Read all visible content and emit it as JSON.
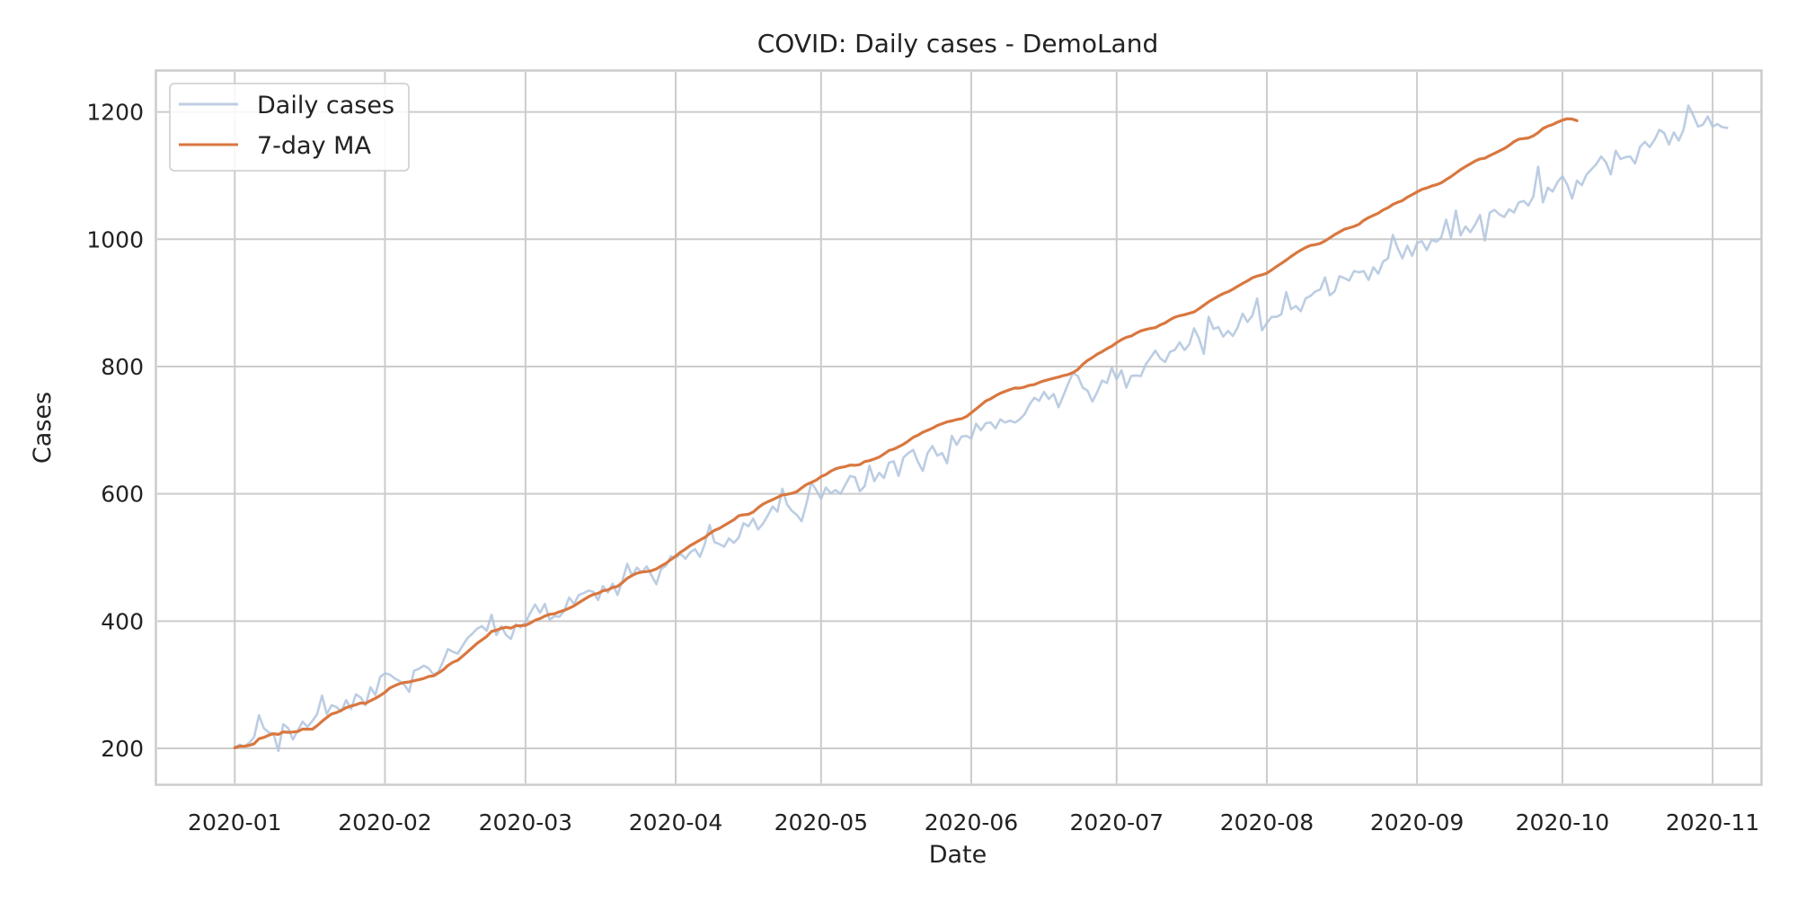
{
  "chart_data": {
    "type": "line",
    "title": "COVID: Daily cases - DemoLand",
    "xlabel": "Date",
    "ylabel": "Cases",
    "x_start": "2020-01-01",
    "x_end": "2020-10-26",
    "xlim": [
      "2019-12-16",
      "2020-11-11"
    ],
    "ylim": [
      145,
      1263
    ],
    "x_ticks": [
      {
        "date": "2020-01-01",
        "label": "2020-01"
      },
      {
        "date": "2020-02-01",
        "label": "2020-02"
      },
      {
        "date": "2020-03-01",
        "label": "2020-03"
      },
      {
        "date": "2020-04-01",
        "label": "2020-04"
      },
      {
        "date": "2020-05-01",
        "label": "2020-05"
      },
      {
        "date": "2020-06-01",
        "label": "2020-06"
      },
      {
        "date": "2020-07-01",
        "label": "2020-07"
      },
      {
        "date": "2020-08-01",
        "label": "2020-08"
      },
      {
        "date": "2020-09-01",
        "label": "2020-09"
      },
      {
        "date": "2020-10-01",
        "label": "2020-10"
      },
      {
        "date": "2020-11-01",
        "label": "2020-11"
      }
    ],
    "y_ticks": [
      200,
      400,
      600,
      800,
      1000,
      1200
    ],
    "grid": true,
    "legend_position": "top-left",
    "series": [
      {
        "name": "Daily cases",
        "color": "#b0c4de",
        "values": [
          201,
          206,
          203,
          209,
          218,
          252,
          232,
          225,
          223,
          196,
          238,
          232,
          214,
          228,
          242,
          234,
          243,
          254,
          283,
          254,
          268,
          265,
          258,
          276,
          262,
          285,
          280,
          268,
          296,
          284,
          312,
          318,
          316,
          310,
          306,
          300,
          289,
          322,
          325,
          330,
          326,
          316,
          320,
          337,
          356,
          352,
          349,
          361,
          373,
          380,
          388,
          392,
          385,
          410,
          378,
          392,
          378,
          372,
          395,
          390,
          398,
          413,
          426,
          413,
          427,
          402,
          408,
          407,
          416,
          437,
          427,
          441,
          444,
          448,
          446,
          433,
          455,
          445,
          459,
          441,
          463,
          490,
          471,
          484,
          476,
          486,
          472,
          458,
          482,
          487,
          502,
          499,
          506,
          498,
          508,
          513,
          501,
          521,
          551,
          524,
          521,
          517,
          530,
          523,
          531,
          554,
          549,
          561,
          544,
          553,
          566,
          580,
          572,
          608,
          583,
          573,
          567,
          557,
          585,
          618,
          606,
          592,
          610,
          601,
          606,
          600,
          614,
          628,
          626,
          604,
          612,
          644,
          620,
          633,
          625,
          649,
          651,
          628,
          657,
          664,
          669,
          650,
          636,
          664,
          675,
          660,
          664,
          648,
          691,
          677,
          690,
          691,
          687,
          710,
          700,
          711,
          712,
          703,
          717,
          712,
          715,
          712,
          717,
          725,
          740,
          751,
          746,
          760,
          749,
          757,
          736,
          754,
          773,
          790,
          785,
          767,
          762,
          745,
          760,
          778,
          774,
          798,
          780,
          794,
          767,
          785,
          786,
          785,
          803,
          814,
          825,
          813,
          807,
          823,
          826,
          838,
          826,
          835,
          860,
          844,
          820,
          878,
          859,
          862,
          847,
          856,
          848,
          862,
          883,
          870,
          880,
          907,
          857,
          868,
          878,
          878,
          882,
          917,
          890,
          895,
          887,
          907,
          911,
          918,
          921,
          940,
          912,
          918,
          942,
          939,
          935,
          950,
          948,
          950,
          936,
          956,
          946,
          965,
          970,
          1007,
          986,
          970,
          990,
          974,
          994,
          997,
          983,
          999,
          996,
          1003,
          1031,
          1002,
          1045,
          1006,
          1020,
          1011,
          1023,
          1038,
          998,
          1042,
          1046,
          1039,
          1035,
          1047,
          1042,
          1058,
          1060,
          1053,
          1067,
          1114,
          1058,
          1081,
          1075,
          1090,
          1099,
          1086,
          1064,
          1092,
          1085,
          1102,
          1110,
          1118,
          1130,
          1121,
          1102,
          1139,
          1126,
          1129,
          1130,
          1119,
          1145,
          1153,
          1145,
          1156,
          1172,
          1167,
          1149,
          1168,
          1155,
          1172,
          1210,
          1195,
          1177,
          1180,
          1193,
          1177,
          1181,
          1176,
          1175
        ]
      },
      {
        "name": "7-day MA",
        "color": "#d9773f",
        "values": [
          201,
          203.5,
          203.3,
          204.8,
          207.4,
          215.2,
          217.3,
          220.7,
          223.1,
          221.9,
          225.9,
          225.3,
          225.7,
          226.6,
          230.4,
          230.2,
          230.1,
          235.7,
          242.5,
          248.6,
          254.1,
          256.3,
          259.9,
          264.0,
          266.6,
          268.6,
          271.4,
          270.6,
          275.0,
          278.7,
          283.0,
          288.1,
          294.9,
          298.4,
          301.7,
          303.6,
          304.4,
          306.3,
          307.9,
          309.9,
          313.0,
          314.0,
          318.3,
          323.3,
          330.3,
          335.3,
          338.4,
          344.7,
          351.4,
          358.2,
          364.9,
          370.4,
          376.0,
          383.8,
          385.8,
          388.7,
          390.4,
          388.9,
          392.8,
          392.9,
          393.4,
          397.0,
          401.4,
          404.1,
          407.9,
          410.7,
          411.6,
          414.6,
          417.0,
          420.3,
          423.9,
          428.9,
          433.7,
          438.3,
          441.8,
          443.7,
          447.6,
          448.9,
          452.9,
          454.6,
          460.5,
          467.3,
          471.7,
          475.2,
          477.2,
          477.8,
          479.1,
          482.1,
          486.6,
          490.9,
          496.7,
          502.1,
          508.3,
          513.2,
          518.7,
          522.9,
          527.4,
          531.5,
          537.5,
          542.5,
          545.7,
          550.3,
          554.7,
          559.1,
          565.5,
          567.1,
          567.8,
          571.5,
          578.1,
          583.7,
          587.6,
          590.8,
          594.4,
          598.3,
          599.2,
          600.8,
          603.4,
          609.3,
          614.7,
          617.9,
          621.5,
          627.0,
          630.3,
          635.6,
          639.4,
          641.5,
          642.8,
          645.1,
          644.8,
          645.9,
          650.7,
          652.2,
          654.7,
          657.7,
          662.7,
          668.0,
          670.3,
          673.9,
          677.9,
          683.0,
          688.7,
          692.1,
          696.8,
          699.7,
          703.2,
          707.4,
          710.2,
          713.1,
          714.6,
          716.7,
          718.0,
          721.4,
          727.3,
          733.5,
          739.7,
          745.9,
          749.3,
          754.0,
          758.1,
          761.0,
          763.8,
          766.3,
          766.1,
          767.8,
          770.5,
          771.6,
          774.9,
          777.6,
          779.7,
          781.5,
          783.5,
          785.7,
          787.4,
          790.5,
          795.3,
          803.4,
          809.6,
          814.1,
          819.5,
          823.4,
          828.1,
          832.0,
          837.5,
          842.2,
          845.9,
          847.9,
          852.2,
          856.0,
          858.2,
          860.0,
          861.1,
          865.3,
          868.5,
          873.6,
          877.5,
          879.9,
          881.5,
          883.7,
          885.8,
          890.8,
          896.3,
          901.8,
          906.3,
          910.6,
          914.6,
          917.5,
          921.5,
          926.2,
          930.5,
          934.6,
          939.3,
          942.1,
          944.1,
          946.7,
          951.7,
          957.1,
          962.1,
          967.3,
          972.9,
          978.1,
          982.8,
          987.0,
          990.3,
          991.6,
          993.4,
          997.3,
          1002.1,
          1007.2,
          1011.4,
          1015.7,
          1017.9,
          1020.2,
          1023.4,
          1029.6,
          1034.1,
          1037.5,
          1041.0,
          1046.0,
          1049.5,
          1054.7,
          1058.1,
          1060.9,
          1066.1,
          1070.1,
          1074.3,
          1078.4,
          1080.6,
          1083.6,
          1085.7,
          1088.6,
          1093.7,
          1098.4,
          1104.1,
          1109.4,
          1114.1,
          1118.5,
          1123.0,
          1126.2,
          1127.3,
          1131.5,
          1134.9,
          1138.9,
          1142.6,
          1147.4,
          1153.3,
          1157.3,
          1158.3,
          1159.1,
          1162.5,
          1167.5,
          1174.1,
          1177.7,
          1180.3,
          1183.9,
          1187.1,
          1189.3,
          1188.9,
          1186.3
        ]
      }
    ]
  }
}
